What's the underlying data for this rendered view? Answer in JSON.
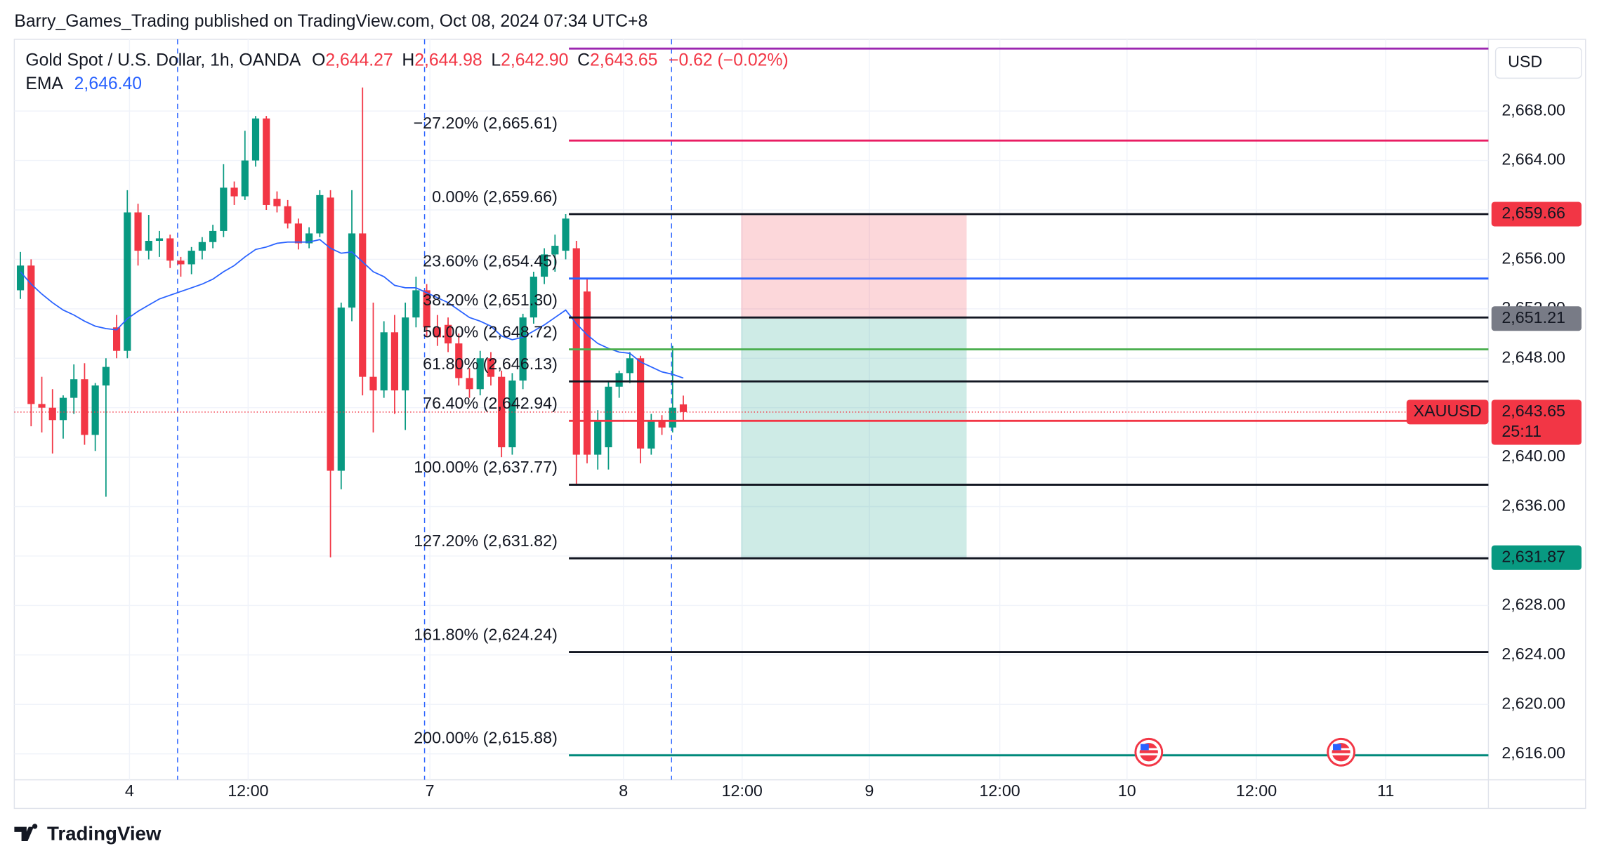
{
  "header": {
    "publisher": "Barry_Games_Trading published on TradingView.com, Oct 08, 2024 07:34 UTC+8",
    "brand": "TradingView"
  },
  "chart_data": {
    "type": "candlestick",
    "title": "Gold Spot / U.S. Dollar, 1h, OANDA",
    "legend": {
      "o_label": "O",
      "open": "2,644.27",
      "h_label": "H",
      "high": "2,644.98",
      "l_label": "L",
      "low": "2,642.90",
      "c_label": "C",
      "close": "2,643.65",
      "change": "−0.62 (−0.02%)"
    },
    "currency": "USD",
    "up_color": "#089981",
    "down_color": "#f23645",
    "x": [
      0,
      1,
      2,
      3,
      4,
      5,
      6,
      7,
      8,
      9,
      10,
      11,
      12,
      13,
      14,
      15,
      16,
      17,
      18,
      19,
      20,
      21,
      22,
      23,
      24,
      25,
      26,
      27,
      28,
      29,
      30,
      31,
      32,
      33,
      34,
      35,
      36,
      37,
      38,
      39,
      40,
      41,
      42,
      43,
      44,
      45,
      46,
      47,
      48,
      49,
      50,
      51,
      52,
      53,
      54,
      55,
      56,
      57,
      58,
      59,
      60,
      61,
      62
    ],
    "open": [
      2653.5,
      2655.5,
      2644.3,
      2644.0,
      2643.0,
      2644.8,
      2646.3,
      2641.8,
      2645.8,
      2650.5,
      2648.6,
      2659.8,
      2656.7,
      2657.5,
      2657.7,
      2655.9,
      2655.6,
      2656.7,
      2657.4,
      2658.3,
      2661.8,
      2661.1,
      2664.0,
      2667.4,
      2660.9,
      2660.3,
      2658.9,
      2657.3,
      2658.1,
      2661.0,
      2638.9,
      2652.1,
      2658.1,
      2646.5,
      2645.4,
      2650.1,
      2645.4,
      2651.3,
      2653.5,
      2650.5,
      2650.7,
      2649.2,
      2646.4,
      2645.5,
      2648.0,
      2646.5,
      2640.8,
      2646.2,
      2651.3,
      2654.6,
      2656.4,
      2656.7,
      2656.9,
      2653.4,
      2640.2,
      2640.8,
      2645.7,
      2646.8,
      2648.0,
      2640.7,
      2643.0,
      2642.4,
      2644.27
    ],
    "high": [
      2656.6,
      2656.0,
      2646.5,
      2645.5,
      2645.0,
      2647.5,
      2647.6,
      2646.0,
      2648.0,
      2651.5,
      2661.6,
      2660.5,
      2659.6,
      2658.3,
      2658.0,
      2656.2,
      2657.0,
      2657.8,
      2658.8,
      2663.7,
      2662.3,
      2666.4,
      2667.6,
      2667.6,
      2661.5,
      2660.8,
      2659.3,
      2658.6,
      2661.6,
      2661.6,
      2652.5,
      2661.6,
      2669.9,
      2652.5,
      2651.0,
      2651.5,
      2652.5,
      2654.6,
      2654.0,
      2651.5,
      2651.3,
      2650.0,
      2647.2,
      2648.6,
      2648.5,
      2647.0,
      2646.8,
      2651.6,
      2655.0,
      2656.9,
      2658.0,
      2659.66,
      2657.5,
      2654.5,
      2643.8,
      2646.2,
      2647.0,
      2648.5,
      2648.2,
      2643.5,
      2643.4,
      2649.0,
      2644.98
    ],
    "low": [
      2652.8,
      2642.5,
      2642.0,
      2640.3,
      2641.5,
      2643.5,
      2641.0,
      2640.5,
      2636.8,
      2648.0,
      2648.0,
      2655.5,
      2656.0,
      2656.2,
      2655.3,
      2654.6,
      2654.8,
      2656.0,
      2656.9,
      2657.8,
      2660.4,
      2660.8,
      2663.5,
      2660.0,
      2659.8,
      2658.5,
      2656.8,
      2656.9,
      2657.8,
      2631.9,
      2637.4,
      2651.0,
      2645.0,
      2642.0,
      2644.8,
      2643.5,
      2642.2,
      2650.5,
      2649.8,
      2649.0,
      2648.5,
      2645.8,
      2644.8,
      2645.0,
      2645.8,
      2640.0,
      2640.2,
      2645.5,
      2650.8,
      2654.0,
      2655.0,
      2656.0,
      2637.7,
      2639.5,
      2639.0,
      2639.0,
      2644.8,
      2646.0,
      2639.5,
      2640.2,
      2641.8,
      2642.0,
      2642.9
    ],
    "close": [
      2655.5,
      2644.3,
      2644.0,
      2643.0,
      2644.8,
      2646.3,
      2641.8,
      2645.8,
      2647.3,
      2648.6,
      2659.8,
      2656.7,
      2657.5,
      2657.7,
      2655.9,
      2655.6,
      2656.7,
      2657.4,
      2658.3,
      2661.8,
      2661.1,
      2664.0,
      2667.4,
      2660.4,
      2660.3,
      2658.9,
      2657.3,
      2658.1,
      2661.2,
      2638.9,
      2652.1,
      2658.1,
      2646.5,
      2645.4,
      2650.1,
      2645.4,
      2651.3,
      2653.5,
      2650.5,
      2649.7,
      2649.2,
      2646.4,
      2645.5,
      2648.0,
      2646.5,
      2640.8,
      2646.2,
      2651.3,
      2654.6,
      2656.4,
      2657.1,
      2659.3,
      2640.2,
      2640.2,
      2643.0,
      2645.7,
      2646.8,
      2648.0,
      2640.7,
      2643.0,
      2642.4,
      2644.0,
      2643.65
    ],
    "ema": {
      "name": "EMA",
      "value_label": "2,646.40",
      "color": "#2962ff",
      "values": [
        2655.0,
        2654.0,
        2653.2,
        2652.5,
        2651.9,
        2651.5,
        2651.0,
        2650.6,
        2650.4,
        2650.3,
        2651.2,
        2651.8,
        2652.3,
        2652.8,
        2653.1,
        2653.4,
        2653.7,
        2654.0,
        2654.4,
        2655.0,
        2655.5,
        2656.2,
        2656.8,
        2657.0,
        2657.3,
        2657.4,
        2657.4,
        2657.4,
        2657.6,
        2656.9,
        2656.5,
        2656.6,
        2655.8,
        2655.0,
        2654.6,
        2653.9,
        2653.7,
        2653.7,
        2653.3,
        2652.9,
        2652.5,
        2651.9,
        2651.3,
        2651.0,
        2650.6,
        2649.8,
        2649.5,
        2649.7,
        2650.2,
        2650.7,
        2651.3,
        2651.9,
        2650.8,
        2649.9,
        2649.2,
        2648.8,
        2648.5,
        2648.4,
        2647.7,
        2647.3,
        2646.9,
        2646.7,
        2646.4
      ]
    },
    "xlim": [
      -0.57,
      137.3
    ],
    "xticks": [
      {
        "value": 10.2,
        "label": "4"
      },
      {
        "value": 21.3,
        "label": "12:00"
      },
      {
        "value": 38.3,
        "label": "7"
      },
      {
        "value": 56.4,
        "label": "8"
      },
      {
        "value": 67.5,
        "label": "12:00"
      },
      {
        "value": 79.4,
        "label": "9"
      },
      {
        "value": 91.6,
        "label": "12:00"
      },
      {
        "value": 103.5,
        "label": "10"
      },
      {
        "value": 115.6,
        "label": "12:00"
      },
      {
        "value": 127.7,
        "label": "11"
      }
    ],
    "ylim": [
      2613.9,
      2673.8
    ],
    "yticks": [
      {
        "value": 2616,
        "label": "2,616.00"
      },
      {
        "value": 2620,
        "label": "2,620.00"
      },
      {
        "value": 2624,
        "label": "2,624.00"
      },
      {
        "value": 2628,
        "label": "2,628.00"
      },
      {
        "value": 2632,
        "label": "2,632.00"
      },
      {
        "value": 2636,
        "label": "2,636.00"
      },
      {
        "value": 2640,
        "label": "2,640.00"
      },
      {
        "value": 2644,
        "label": "2,644.00"
      },
      {
        "value": 2648,
        "label": "2,648.00"
      },
      {
        "value": 2652,
        "label": "2,652.00"
      },
      {
        "value": 2656,
        "label": "2,656.00"
      },
      {
        "value": 2660,
        "label": "2,660.00"
      },
      {
        "value": 2664,
        "label": "2,664.00"
      },
      {
        "value": 2668,
        "label": "2,668.00"
      }
    ],
    "grid": true,
    "session_breaks": [
      14.7,
      37.8,
      60.9
    ],
    "fib_x_start": 51.3,
    "fib_levels": [
      {
        "value": 2673.05,
        "color": "#9c27b0"
      },
      {
        "label": "−27.20% (2,665.61)",
        "value": 2665.61,
        "color": "#e91e63"
      },
      {
        "label": "0.00% (2,659.66)",
        "value": 2659.66,
        "color": "#131722"
      },
      {
        "label": "23.60% (2,654.45)",
        "value": 2654.45,
        "color": "#2962ff"
      },
      {
        "label": "38.20% (2,651.30)",
        "value": 2651.3,
        "color": "#131722"
      },
      {
        "label": "50.00% (2,648.72)",
        "value": 2648.72,
        "color": "#4caf50"
      },
      {
        "label": "61.80% (2,646.13)",
        "value": 2646.13,
        "color": "#131722"
      },
      {
        "label": "76.40% (2,642.94)",
        "value": 2642.94,
        "color": "#f23645"
      },
      {
        "label": "100.00% (2,637.77)",
        "value": 2637.77,
        "color": "#131722"
      },
      {
        "label": "127.20% (2,631.82)",
        "value": 2631.82,
        "color": "#131722"
      },
      {
        "label": "161.80% (2,624.24)",
        "value": 2624.24,
        "color": "#131722"
      },
      {
        "label": "200.00% (2,615.88)",
        "value": 2615.88,
        "color": "#00897b"
      }
    ],
    "position": {
      "x_start": 67.4,
      "x_end": 88.5,
      "stop": 2659.66,
      "stop_label": "2,659.66",
      "entry": 2651.21,
      "entry_label": "2,651.21",
      "target": 2631.87,
      "target_label": "2,631.87"
    },
    "price_label": {
      "symbol": "XAUUSD",
      "price": "2,643.65",
      "countdown": "25:11",
      "value": 2643.65
    }
  }
}
